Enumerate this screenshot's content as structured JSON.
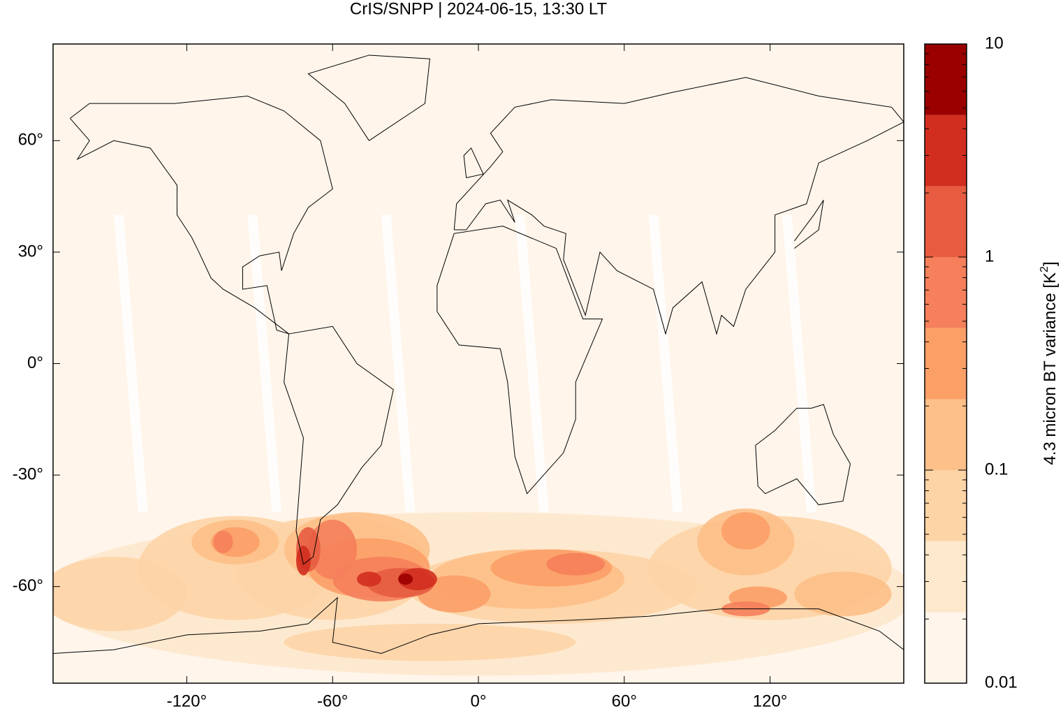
{
  "chart_data": {
    "type": "map",
    "title": "CrIS/SNPP | 2024-06-15, 13:30 LT",
    "xlim": [
      -175,
      175
    ],
    "ylim": [
      -86,
      86
    ],
    "xticks": [
      {
        "value": -120,
        "label": "-120°"
      },
      {
        "value": -60,
        "label": "-60°"
      },
      {
        "value": 0,
        "label": "0°"
      },
      {
        "value": 60,
        "label": "60°"
      },
      {
        "value": 120,
        "label": "120°"
      }
    ],
    "yticks": [
      {
        "value": 60,
        "label": "60°"
      },
      {
        "value": 30,
        "label": "30°"
      },
      {
        "value": 0,
        "label": "0°"
      },
      {
        "value": -30,
        "label": "-30°"
      },
      {
        "value": -60,
        "label": "-60°"
      }
    ],
    "colorbar": {
      "label": "4.3 micron BT variance [K",
      "label_superscript": "2",
      "label_suffix": "]",
      "log_scale": true,
      "lim": [
        0.01,
        10
      ],
      "ticks": [
        0.01,
        0.1,
        1,
        10
      ],
      "minor_ticks": [
        0.02,
        0.03,
        0.04,
        0.05,
        0.06,
        0.07,
        0.08,
        0.09,
        0.2,
        0.3,
        0.4,
        0.5,
        0.6,
        0.7,
        0.8,
        0.9,
        2,
        3,
        4,
        5,
        6,
        7,
        8,
        9
      ],
      "levels": [
        0.01,
        0.0215,
        0.0464,
        0.1,
        0.215,
        0.464,
        1,
        2.15,
        4.64,
        10
      ],
      "colors": [
        "#fff5eb",
        "#fde8cc",
        "#fdd4a6",
        "#fdc088",
        "#fc9f67",
        "#f5805b",
        "#e75c40",
        "#d12e1f",
        "#9a0000"
      ]
    }
  }
}
